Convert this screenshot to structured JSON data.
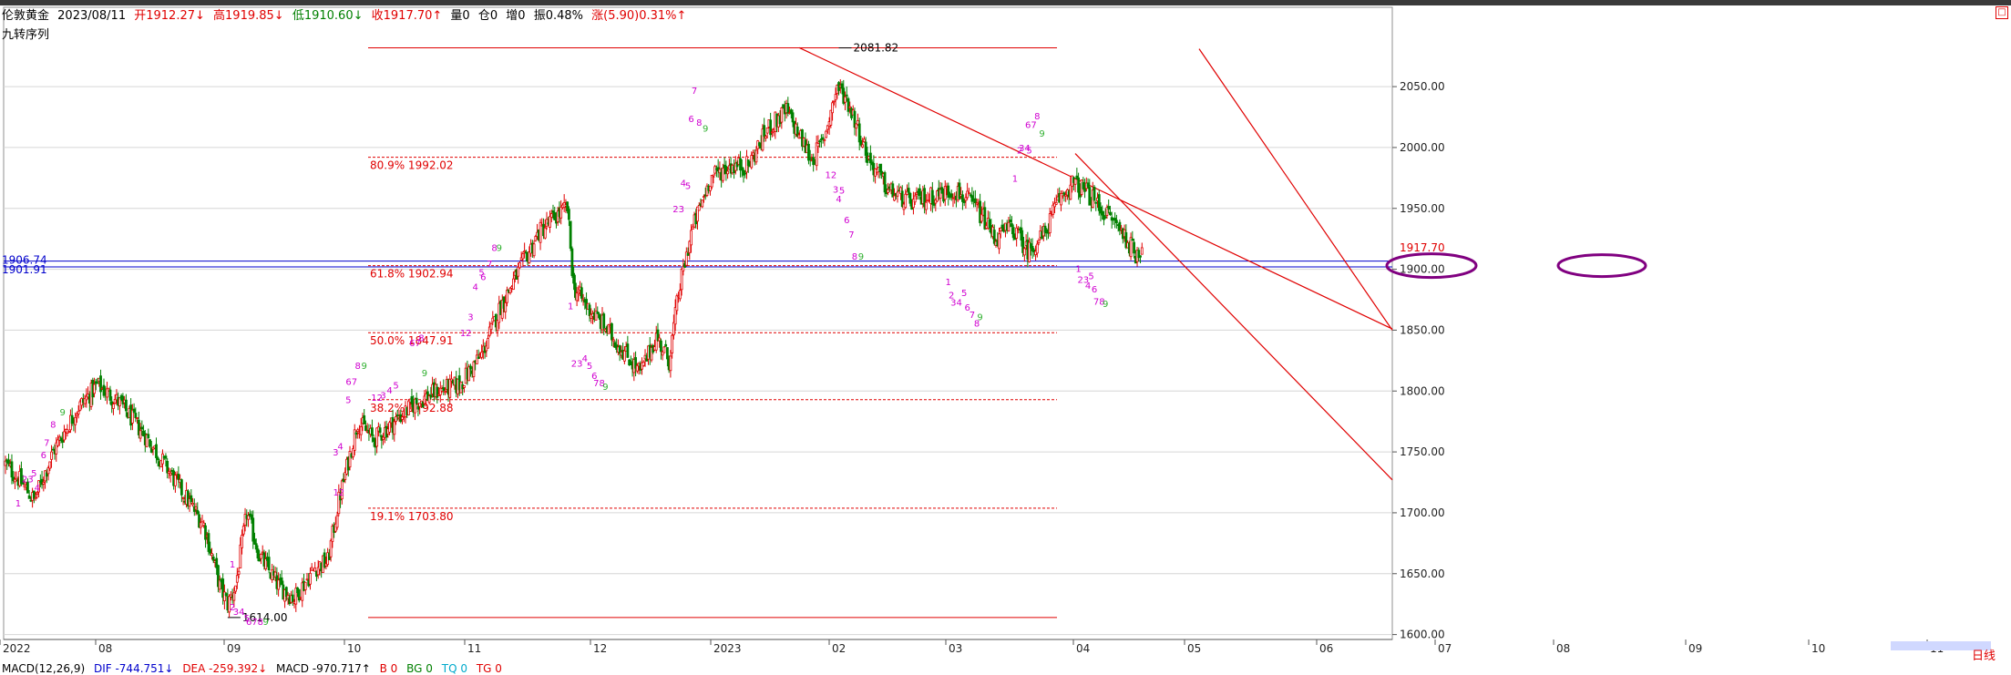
{
  "header": {
    "instrument": "伦敦黄金",
    "date": "2023/08/11",
    "open": "开1912.27↓",
    "high": "高1919.85↓",
    "low": "低1910.60↓",
    "close": "收1917.70↑",
    "volume": "量0",
    "position": "仓0",
    "increase": "增0",
    "amplitude": "振0.48%",
    "change": "涨(5.90)0.31%↑"
  },
  "indicator_title": "九转序列",
  "period_label": "日线",
  "corner_button": "□",
  "macd": {
    "name": "MACD(12,26,9)",
    "dif": "DIF -744.751↓",
    "dea": "DEA -259.392↓",
    "macd": "MACD -970.717↑",
    "b": "B 0",
    "bg": "BG 0",
    "tq": "TQ 0",
    "tg": "TG 0"
  },
  "colors": {
    "up": "#e00000",
    "down": "#008000",
    "channel": "#e00000",
    "support": "#0000cc",
    "ellipse": "#800080",
    "seq_buy": "#d000d0",
    "seq_nine": "#30b030"
  },
  "chart_data": {
    "type": "candlestick",
    "y_range": [
      1600,
      2085
    ],
    "y_ticks": [
      "2050.00",
      "2000.00",
      "1950.00",
      "1900.00",
      "1850.00",
      "1800.00",
      "1750.00",
      "1700.00",
      "1650.00",
      "1600.00"
    ],
    "x_labels": [
      "2022",
      "08",
      "09",
      "10",
      "11",
      "12",
      "2023",
      "02",
      "03",
      "04",
      "05",
      "06",
      "07",
      "08",
      "09",
      "10",
      "11"
    ],
    "last_price": "1917.70",
    "last_price_value": 1917.7,
    "fibonacci": [
      {
        "label": "80.9% 1992.02",
        "value": 1992.02
      },
      {
        "label": "61.8% 1902.94",
        "value": 1902.94
      },
      {
        "label": "50.0% 1847.91",
        "value": 1847.91
      },
      {
        "label": "38.2% 1792.88",
        "value": 1792.88
      },
      {
        "label": "19.1% 1703.80",
        "value": 1703.8
      }
    ],
    "fib_high": 2081.82,
    "fib_low": 1614.0,
    "annotations": [
      {
        "label": "2081.82",
        "value": 2081.82
      },
      {
        "label": "1614.00",
        "value": 1614.0
      }
    ],
    "support_levels": [
      {
        "label": "1906.74",
        "value": 1906.74
      },
      {
        "label": "1901.91",
        "value": 1901.91
      }
    ],
    "waypoints": [
      [
        0,
        1740
      ],
      [
        10,
        1725
      ],
      [
        18,
        1710
      ],
      [
        30,
        1750
      ],
      [
        45,
        1785
      ],
      [
        58,
        1805
      ],
      [
        72,
        1790
      ],
      [
        90,
        1760
      ],
      [
        110,
        1720
      ],
      [
        125,
        1690
      ],
      [
        135,
        1640
      ],
      [
        140,
        1625
      ],
      [
        145,
        1640
      ],
      [
        152,
        1700
      ],
      [
        160,
        1665
      ],
      [
        172,
        1640
      ],
      [
        182,
        1630
      ],
      [
        195,
        1655
      ],
      [
        203,
        1660
      ],
      [
        210,
        1710
      ],
      [
        222,
        1775
      ],
      [
        232,
        1760
      ],
      [
        245,
        1775
      ],
      [
        258,
        1790
      ],
      [
        272,
        1800
      ],
      [
        286,
        1805
      ],
      [
        300,
        1830
      ],
      [
        312,
        1870
      ],
      [
        324,
        1900
      ],
      [
        336,
        1930
      ],
      [
        348,
        1945
      ],
      [
        354,
        1950
      ],
      [
        358,
        1885
      ],
      [
        366,
        1870
      ],
      [
        376,
        1855
      ],
      [
        388,
        1835
      ],
      [
        400,
        1815
      ],
      [
        410,
        1845
      ],
      [
        418,
        1825
      ],
      [
        424,
        1880
      ],
      [
        432,
        1930
      ],
      [
        444,
        1975
      ],
      [
        456,
        1985
      ],
      [
        468,
        1985
      ],
      [
        480,
        2015
      ],
      [
        492,
        2030
      ],
      [
        500,
        2010
      ],
      [
        508,
        1990
      ],
      [
        515,
        2005
      ],
      [
        520,
        2030
      ],
      [
        524,
        2050
      ],
      [
        530,
        2040
      ],
      [
        536,
        2020
      ],
      [
        544,
        1990
      ],
      [
        556,
        1965
      ],
      [
        570,
        1955
      ],
      [
        584,
        1960
      ],
      [
        598,
        1965
      ],
      [
        612,
        1950
      ],
      [
        624,
        1925
      ],
      [
        634,
        1935
      ],
      [
        644,
        1915
      ],
      [
        654,
        1928
      ],
      [
        664,
        1958
      ],
      [
        672,
        1970
      ],
      [
        680,
        1965
      ],
      [
        690,
        1950
      ],
      [
        698,
        1940
      ],
      [
        704,
        1930
      ],
      [
        712,
        1912
      ],
      [
        716,
        1918
      ]
    ],
    "td_sequence": [
      {
        "d": 36,
        "v": 1780,
        "t": "9",
        "c": "nine"
      },
      {
        "d": 30,
        "v": 1770,
        "t": "8",
        "c": "seq"
      },
      {
        "d": 26,
        "v": 1755,
        "t": "7",
        "c": "seq"
      },
      {
        "d": 24,
        "v": 1745,
        "t": "6",
        "c": "seq"
      },
      {
        "d": 18,
        "v": 1730,
        "t": "5",
        "c": "seq"
      },
      {
        "d": 14,
        "v": 1725,
        "t": "23",
        "c": "seq"
      },
      {
        "d": 20,
        "v": 1718,
        "t": "4",
        "c": "seq"
      },
      {
        "d": 8,
        "v": 1705,
        "t": "1",
        "c": "seq"
      },
      {
        "d": 143,
        "v": 1655,
        "t": "1",
        "c": "seq"
      },
      {
        "d": 143,
        "v": 1620,
        "t": "2",
        "c": "seq"
      },
      {
        "d": 147,
        "v": 1616,
        "t": "34",
        "c": "seq"
      },
      {
        "d": 152,
        "v": 1611,
        "t": "5",
        "c": "seq"
      },
      {
        "d": 157,
        "v": 1608,
        "t": "678",
        "c": "seq"
      },
      {
        "d": 164,
        "v": 1608,
        "t": "9",
        "c": "nine"
      },
      {
        "d": 210,
        "v": 1714,
        "t": "12",
        "c": "seq"
      },
      {
        "d": 208,
        "v": 1747,
        "t": "3",
        "c": "seq"
      },
      {
        "d": 211,
        "v": 1752,
        "t": "4",
        "c": "seq"
      },
      {
        "d": 216,
        "v": 1790,
        "t": "5",
        "c": "seq"
      },
      {
        "d": 218,
        "v": 1805,
        "t": "67",
        "c": "seq"
      },
      {
        "d": 222,
        "v": 1818,
        "t": "8",
        "c": "seq"
      },
      {
        "d": 226,
        "v": 1818,
        "t": "9",
        "c": "nine"
      },
      {
        "d": 234,
        "v": 1792,
        "t": "12",
        "c": "seq"
      },
      {
        "d": 238,
        "v": 1794,
        "t": "3",
        "c": "seq"
      },
      {
        "d": 242,
        "v": 1798,
        "t": "4",
        "c": "seq"
      },
      {
        "d": 246,
        "v": 1802,
        "t": "5",
        "c": "seq"
      },
      {
        "d": 258,
        "v": 1837,
        "t": "67",
        "c": "seq"
      },
      {
        "d": 262,
        "v": 1841,
        "t": "8",
        "c": "seq"
      },
      {
        "d": 264,
        "v": 1812,
        "t": "9",
        "c": "nine"
      },
      {
        "d": 290,
        "v": 1845,
        "t": "12",
        "c": "seq"
      },
      {
        "d": 293,
        "v": 1858,
        "t": "3",
        "c": "seq"
      },
      {
        "d": 296,
        "v": 1883,
        "t": "4",
        "c": "seq"
      },
      {
        "d": 300,
        "v": 1895,
        "t": "5",
        "c": "seq"
      },
      {
        "d": 301,
        "v": 1891,
        "t": "6",
        "c": "seq"
      },
      {
        "d": 305,
        "v": 1902,
        "t": "7",
        "c": "seq"
      },
      {
        "d": 308,
        "v": 1915,
        "t": "8",
        "c": "seq"
      },
      {
        "d": 311,
        "v": 1915,
        "t": "9",
        "c": "nine"
      },
      {
        "d": 356,
        "v": 1867,
        "t": "1",
        "c": "seq"
      },
      {
        "d": 360,
        "v": 1820,
        "t": "23",
        "c": "seq"
      },
      {
        "d": 365,
        "v": 1824,
        "t": "4",
        "c": "seq"
      },
      {
        "d": 368,
        "v": 1818,
        "t": "5",
        "c": "seq"
      },
      {
        "d": 371,
        "v": 1810,
        "t": "6",
        "c": "seq"
      },
      {
        "d": 374,
        "v": 1804,
        "t": "78",
        "c": "seq"
      },
      {
        "d": 378,
        "v": 1801,
        "t": "9",
        "c": "nine"
      },
      {
        "d": 424,
        "v": 1947,
        "t": "23",
        "c": "seq"
      },
      {
        "d": 427,
        "v": 1968,
        "t": "4",
        "c": "seq"
      },
      {
        "d": 430,
        "v": 1966,
        "t": "5",
        "c": "seq"
      },
      {
        "d": 432,
        "v": 2021,
        "t": "6",
        "c": "seq"
      },
      {
        "d": 437,
        "v": 2018,
        "t": "8",
        "c": "seq"
      },
      {
        "d": 441,
        "v": 2013,
        "t": "9",
        "c": "nine"
      },
      {
        "d": 434,
        "v": 2044,
        "t": "7",
        "c": "seq"
      },
      {
        "d": 520,
        "v": 1975,
        "t": "12",
        "c": "seq"
      },
      {
        "d": 523,
        "v": 1963,
        "t": "3",
        "c": "seq"
      },
      {
        "d": 527,
        "v": 1962,
        "t": "5",
        "c": "seq"
      },
      {
        "d": 525,
        "v": 1955,
        "t": "4",
        "c": "seq"
      },
      {
        "d": 530,
        "v": 1938,
        "t": "6",
        "c": "seq"
      },
      {
        "d": 533,
        "v": 1926,
        "t": "7",
        "c": "seq"
      },
      {
        "d": 535,
        "v": 1908,
        "t": "8",
        "c": "seq"
      },
      {
        "d": 539,
        "v": 1908,
        "t": "9",
        "c": "nine"
      },
      {
        "d": 594,
        "v": 1887,
        "t": "1",
        "c": "seq"
      },
      {
        "d": 596,
        "v": 1876,
        "t": "2",
        "c": "seq"
      },
      {
        "d": 599,
        "v": 1870,
        "t": "34",
        "c": "seq"
      },
      {
        "d": 604,
        "v": 1878,
        "t": "5",
        "c": "seq"
      },
      {
        "d": 606,
        "v": 1866,
        "t": "6",
        "c": "seq"
      },
      {
        "d": 609,
        "v": 1860,
        "t": "7",
        "c": "seq"
      },
      {
        "d": 612,
        "v": 1853,
        "t": "8",
        "c": "seq"
      },
      {
        "d": 614,
        "v": 1858,
        "t": "9",
        "c": "nine"
      },
      {
        "d": 636,
        "v": 1972,
        "t": "1",
        "c": "seq"
      },
      {
        "d": 639,
        "v": 1995,
        "t": "2",
        "c": "seq"
      },
      {
        "d": 642,
        "v": 1997,
        "t": "34",
        "c": "seq"
      },
      {
        "d": 645,
        "v": 1995,
        "t": "5",
        "c": "seq"
      },
      {
        "d": 646,
        "v": 2016,
        "t": "67",
        "c": "seq"
      },
      {
        "d": 650,
        "v": 2023,
        "t": "8",
        "c": "seq"
      },
      {
        "d": 653,
        "v": 2009,
        "t": "9",
        "c": "nine"
      },
      {
        "d": 676,
        "v": 1898,
        "t": "1",
        "c": "seq"
      },
      {
        "d": 679,
        "v": 1889,
        "t": "23",
        "c": "seq"
      },
      {
        "d": 682,
        "v": 1884,
        "t": "4",
        "c": "seq"
      },
      {
        "d": 684,
        "v": 1892,
        "t": "5",
        "c": "seq"
      },
      {
        "d": 686,
        "v": 1881,
        "t": "6",
        "c": "seq"
      },
      {
        "d": 689,
        "v": 1871,
        "t": "78",
        "c": "seq"
      },
      {
        "d": 693,
        "v": 1869,
        "t": "9",
        "c": "nine"
      }
    ]
  }
}
